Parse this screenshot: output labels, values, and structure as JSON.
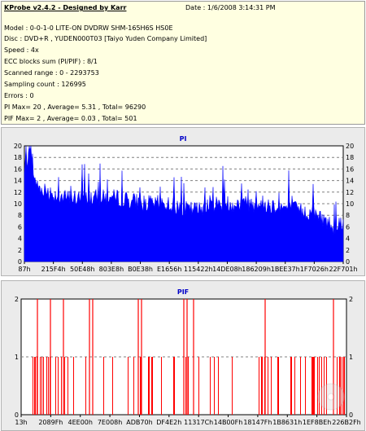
{
  "info": {
    "app_title": "KProbe v2.4.2 - Designed by Karr",
    "date": "Date : 1/6/2008 3:14:31 PM",
    "lines": [
      "Model : 0-0-1-0 LITE-ON DVDRW SHM-165H6S HS0E",
      "Disc : DVD+R , YUDEN000T03 [Taiyo Yuden Company Limited]",
      "Speed : 4x",
      "ECC blocks sum (PI/PIF) : 8/1",
      "Scanned range : 0 - 2293753",
      "Sampling count : 126995",
      "Errors : 0",
      "PI Max= 20 , Average= 5.31 , Total= 96290",
      "PIF Max= 2 , Average= 0.03 , Total= 501"
    ]
  },
  "chart_data": [
    {
      "type": "area",
      "title": "PI",
      "color": "#0000ff",
      "ylim": [
        0,
        20
      ],
      "yticks": [
        0,
        2,
        4,
        6,
        8,
        10,
        12,
        14,
        16,
        18,
        20
      ],
      "xtick_labels": [
        "87h",
        "215F4h",
        "50E48h",
        "803E8h",
        "B0E38h",
        "E1656h",
        "115422h",
        "14DE08h",
        "186209h",
        "1BEE37h",
        "1F7026h",
        "22F701h"
      ],
      "grid": true,
      "max": 20,
      "average": 5.31,
      "total": 96290,
      "profile": [
        [
          0.0,
          15
        ],
        [
          0.01,
          19
        ],
        [
          0.04,
          13
        ],
        [
          0.08,
          12
        ],
        [
          0.12,
          11
        ],
        [
          0.2,
          11
        ],
        [
          0.3,
          11
        ],
        [
          0.38,
          10
        ],
        [
          0.45,
          10
        ],
        [
          0.5,
          9
        ],
        [
          0.55,
          9
        ],
        [
          0.57,
          10
        ],
        [
          0.65,
          10
        ],
        [
          0.75,
          10
        ],
        [
          0.85,
          9
        ],
        [
          0.92,
          8
        ],
        [
          0.97,
          6
        ],
        [
          1.0,
          7
        ]
      ]
    },
    {
      "type": "bar",
      "title": "PIF",
      "color": "#ff0000",
      "ylim": [
        0,
        2
      ],
      "yticks": [
        0,
        1,
        2
      ],
      "xtick_labels": [
        "13h",
        "2089Fh",
        "4EE00h",
        "7E008h",
        "ADB70h",
        "DF4E2h",
        "11317Ch",
        "14B00Fh",
        "18147Fh",
        "1B8631h",
        "1EF8BEh",
        "226B2Fh"
      ],
      "grid": true,
      "max": 2,
      "average": 0.03,
      "total": 501,
      "spikes_value_2": [
        0.05,
        0.09,
        0.13,
        0.21,
        0.22,
        0.36,
        0.37,
        0.5,
        0.51,
        0.53,
        0.75,
        0.96
      ]
    }
  ]
}
